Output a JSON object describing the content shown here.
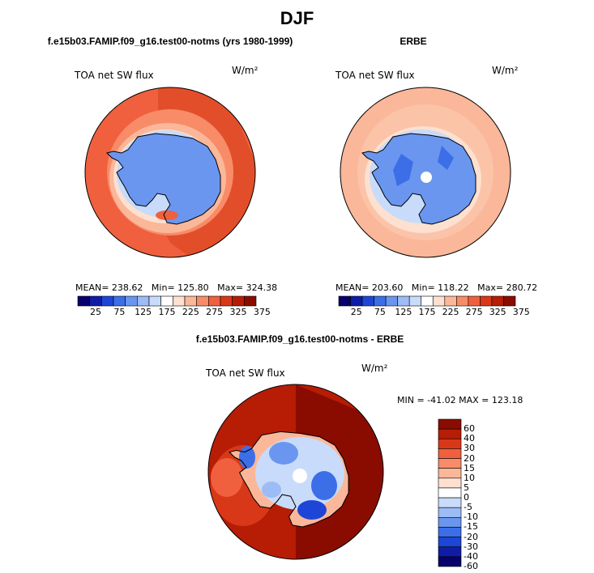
{
  "title": "DJF",
  "panels": [
    {
      "title": "f.e15b03.FAMIP.f09_g16.test00-notms (yrs 1980-1999)",
      "variable": "TOA net SW flux",
      "units": "W/m²",
      "stats": {
        "mean_label": "MEAN=",
        "mean": "238.62",
        "min_label": "Min=",
        "min": "125.80",
        "max_label": "Max=",
        "max": "324.38"
      },
      "colorbar": {
        "ticks": [
          "25",
          "75",
          "125",
          "175",
          "225",
          "275",
          "325",
          "375"
        ],
        "colors": [
          "#08006b",
          "#0f1da6",
          "#1e46d6",
          "#3c6ee8",
          "#6a96f0",
          "#9dbbf5",
          "#c8dbfa",
          "#ffffff",
          "#fde0d0",
          "#fbb799",
          "#f88c68",
          "#f0603e",
          "#d93818",
          "#b71c05",
          "#8a0c00"
        ]
      }
    },
    {
      "title": "ERBE",
      "variable": "TOA net SW flux",
      "units": "W/m²",
      "stats": {
        "mean_label": "MEAN=",
        "mean": "203.60",
        "min_label": "Min=",
        "min": "118.22",
        "max_label": "Max=",
        "max": "280.72"
      },
      "colorbar": {
        "ticks": [
          "25",
          "75",
          "125",
          "175",
          "225",
          "275",
          "325",
          "375"
        ],
        "colors": [
          "#08006b",
          "#0f1da6",
          "#1e46d6",
          "#3c6ee8",
          "#6a96f0",
          "#9dbbf5",
          "#c8dbfa",
          "#ffffff",
          "#fde0d0",
          "#fbb799",
          "#f88c68",
          "#f0603e",
          "#d93818",
          "#b71c05",
          "#8a0c00"
        ]
      }
    },
    {
      "title": "f.e15b03.FAMIP.f09_g16.test00-notms - ERBE",
      "variable": "TOA net SW flux",
      "units": "W/m²",
      "stats_text": "MIN = -41.02 MAX = 123.18",
      "colorbar": {
        "labels": [
          "60",
          "40",
          "30",
          "20",
          "15",
          "10",
          "5",
          "0",
          "-5",
          "-10",
          "-15",
          "-20",
          "-30",
          "-40",
          "-60"
        ],
        "colors": [
          "#8a0c00",
          "#b71c05",
          "#d93818",
          "#f0603e",
          "#f88c68",
          "#fbb799",
          "#fde0d0",
          "#ffffff",
          "#c8dbfa",
          "#9dbbf5",
          "#6a96f0",
          "#3c6ee8",
          "#1e46d6",
          "#0f1da6",
          "#08006b"
        ]
      }
    }
  ]
}
